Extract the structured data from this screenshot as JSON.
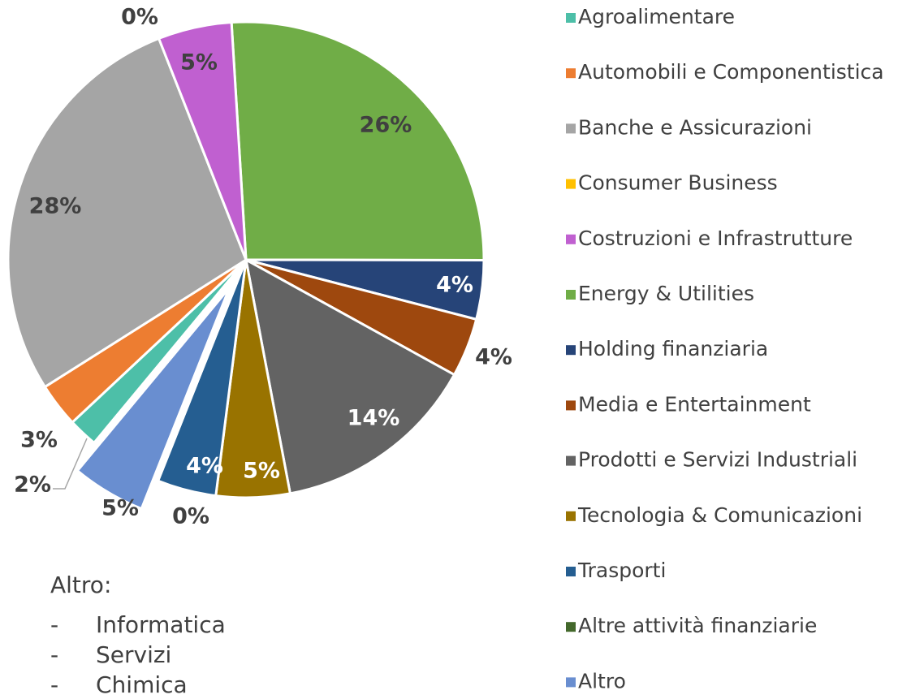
{
  "chart_data": {
    "type": "pie",
    "categories": [
      "Agroalimentare",
      "Automobili e Componentistica",
      "Banche e Assicurazioni",
      "Consumer Business",
      "Costruzioni e Infrastrutture",
      "Energy & Utilities",
      "Holding finanziaria",
      "Media e Entertainment",
      "Prodotti e Servizi Industriali",
      "Tecnologia & Comunicazioni",
      "Trasporti",
      "Altre attività finanziarie",
      "Altro"
    ],
    "values": [
      2,
      3,
      28,
      0,
      5,
      26,
      4,
      4,
      14,
      5,
      4,
      0,
      5
    ],
    "value_labels": [
      "2%",
      "3%",
      "28%",
      "0%",
      "5%",
      "26%",
      "4%",
      "4%",
      "14%",
      "5%",
      "4%",
      "0%",
      "5%"
    ],
    "colors": [
      "#4dbfa8",
      "#ed7d31",
      "#a5a5a5",
      "#ffc000",
      "#c060d0",
      "#70ad47",
      "#264478",
      "#9e480e",
      "#636363",
      "#997300",
      "#255e91",
      "#43682b",
      "#698ed0"
    ],
    "legend": "right",
    "note": {
      "title": "Altro:",
      "items": [
        "Informatica",
        "Servizi",
        "Chimica"
      ]
    }
  }
}
